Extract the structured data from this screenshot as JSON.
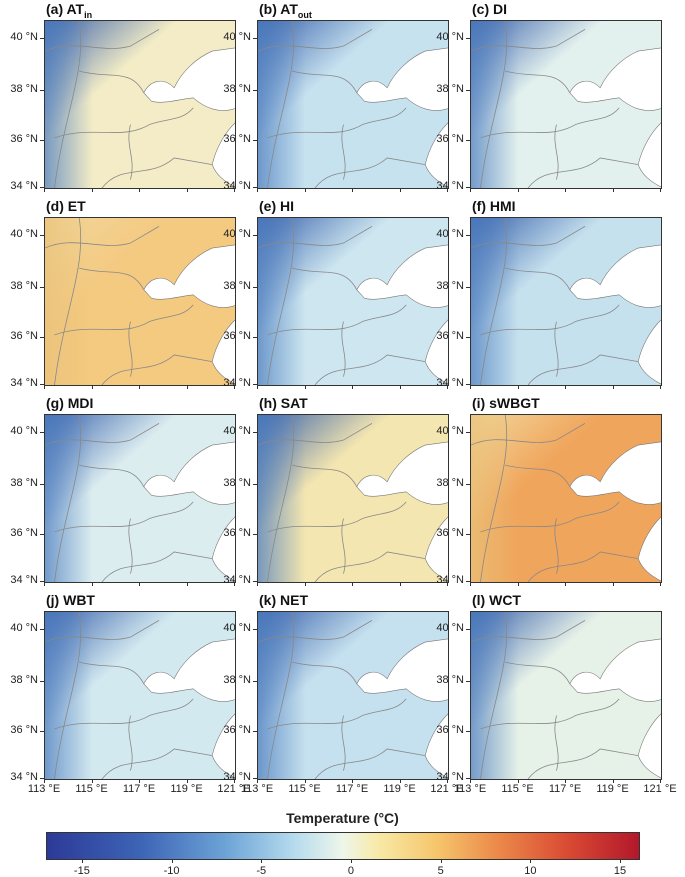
{
  "panels": [
    {
      "letter": "(a)",
      "name": "AT",
      "sub": "in",
      "tone": "#f3ecc6"
    },
    {
      "letter": "(b)",
      "name": "AT",
      "sub": "out",
      "tone": "#c7e2ef"
    },
    {
      "letter": "(c)",
      "name": "DI",
      "sub": "",
      "tone": "#e3f1ee"
    },
    {
      "letter": "(d)",
      "name": "ET",
      "sub": "",
      "tone": "#f4c980"
    },
    {
      "letter": "(e)",
      "name": "HI",
      "sub": "",
      "tone": "#cde6f0"
    },
    {
      "letter": "(f)",
      "name": "HMI",
      "sub": "",
      "tone": "#c6e1ee"
    },
    {
      "letter": "(g)",
      "name": "MDI",
      "sub": "",
      "tone": "#dcedf0"
    },
    {
      "letter": "(h)",
      "name": "SAT",
      "sub": "",
      "tone": "#f4e6b0"
    },
    {
      "letter": "(i)",
      "name": "sWBGT",
      "sub": "",
      "tone": "#f0a55c"
    },
    {
      "letter": "(j)",
      "name": "WBT",
      "sub": "",
      "tone": "#d3e9f0"
    },
    {
      "letter": "(k)",
      "name": "NET",
      "sub": "",
      "tone": "#c5e0ee"
    },
    {
      "letter": "(l)",
      "name": "WCT",
      "sub": "",
      "tone": "#e6f1e8"
    }
  ],
  "lat_ticks": [
    "40 °N",
    "38 °N",
    "36 °N",
    "34 °N"
  ],
  "lon_ticks": [
    "113 °E",
    "115 °E",
    "117 °E",
    "119 °E",
    "121 °E"
  ],
  "colorbar": {
    "title": "Temperature (°C)",
    "ticks": [
      "-15",
      "-10",
      "-5",
      "0",
      "5",
      "10",
      "15"
    ],
    "min": -17,
    "max": 16
  },
  "colors": {
    "land_outline": "#888888",
    "sea": "#ffffff"
  }
}
